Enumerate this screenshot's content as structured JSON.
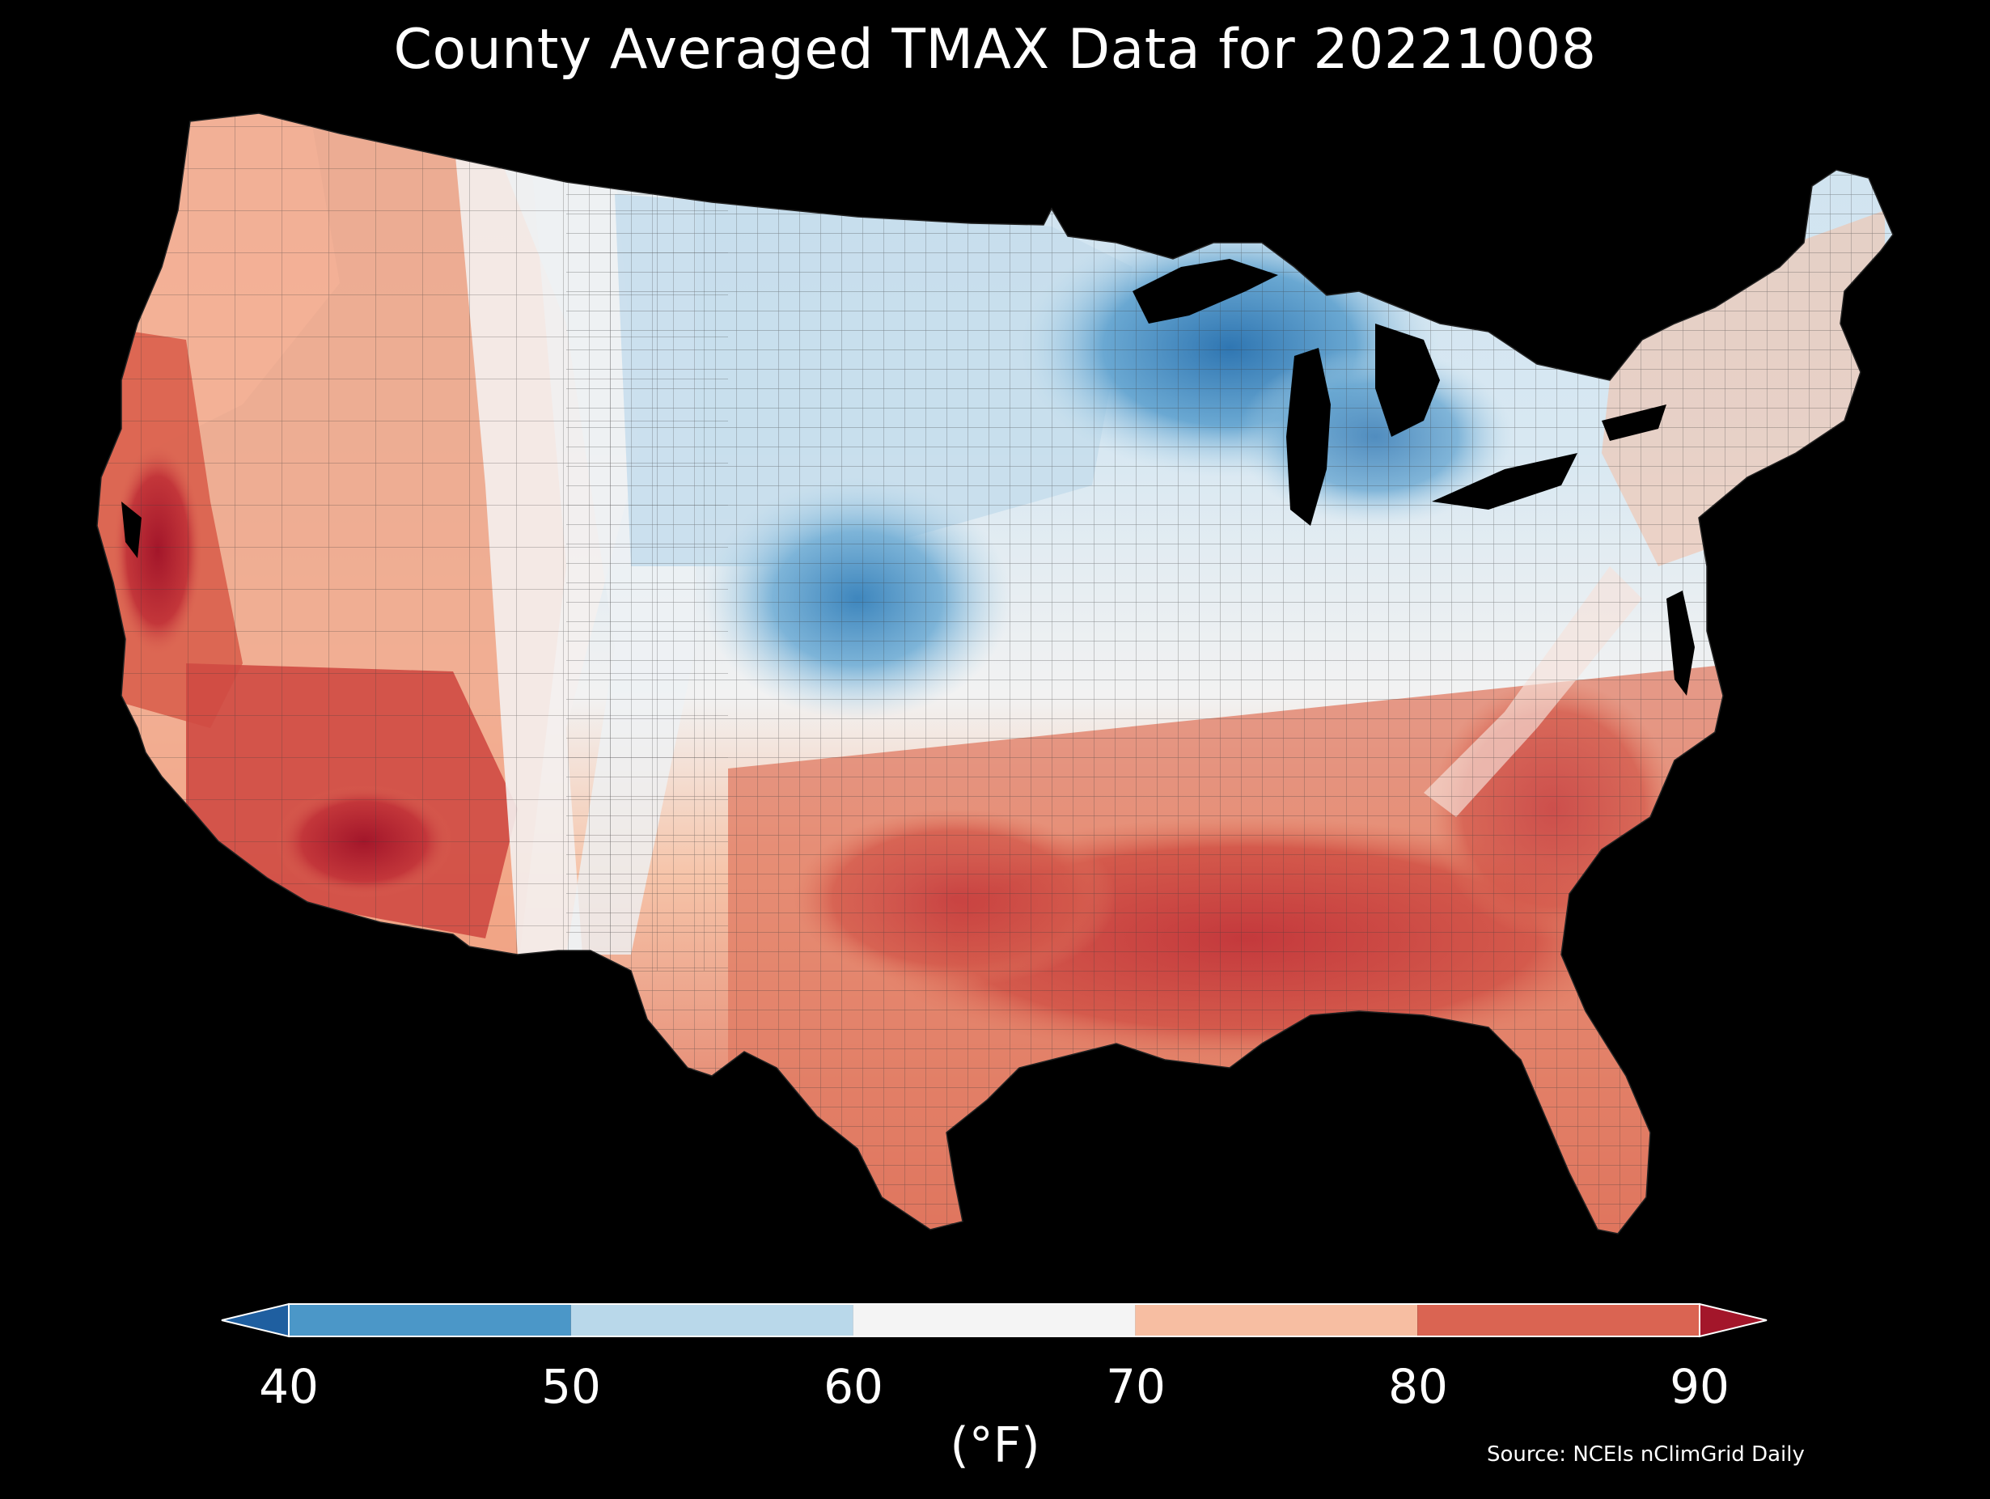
{
  "title": "County Averaged TMAX Data for 20221008",
  "colorbar": {
    "ticks": [
      "40",
      "50",
      "60",
      "70",
      "80",
      "90"
    ],
    "unit": "(°F)",
    "bins": [
      {
        "from": null,
        "to": 40,
        "color": "#1f5fa0"
      },
      {
        "from": 40,
        "to": 50,
        "color": "#4b97c8"
      },
      {
        "from": 50,
        "to": 60,
        "color": "#b9d8ea"
      },
      {
        "from": 60,
        "to": 70,
        "color": "#f4f4f4"
      },
      {
        "from": 70,
        "to": 80,
        "color": "#f7bea2"
      },
      {
        "from": 80,
        "to": 90,
        "color": "#da6452"
      },
      {
        "from": 90,
        "to": null,
        "color": "#a3162a"
      }
    ]
  },
  "source": "Source: NCEIs nClimGrid Daily",
  "map": {
    "region": "Contiguous United States",
    "variable": "TMAX",
    "coldest_area": "Upper Midwest and central Plains (40–50 °F)",
    "hottest_area": "Desert Southwest and California Central Valley (above 90 °F)"
  }
}
